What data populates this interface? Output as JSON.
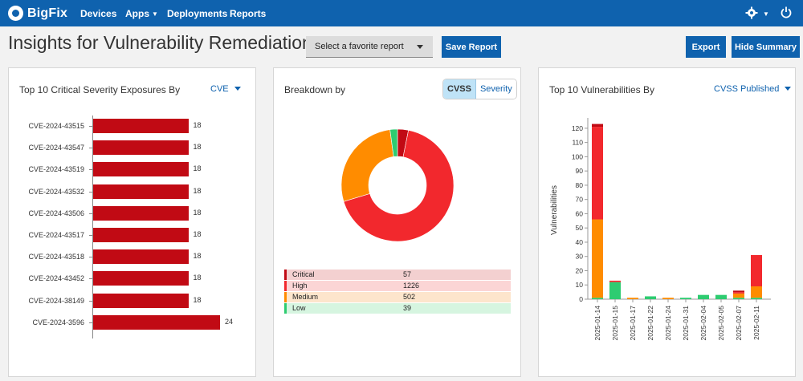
{
  "nav": {
    "brand": "BigFix",
    "items": [
      {
        "label": "Devices",
        "caret": false
      },
      {
        "label": "Apps",
        "caret": true
      },
      {
        "label": "Deployments",
        "caret": false
      },
      {
        "label": "Reports",
        "caret": false
      }
    ],
    "icons": [
      "gear-icon",
      "power-icon"
    ]
  },
  "header": {
    "title": "Insights for Vulnerability Remediation",
    "favorite_placeholder": "Select a favorite report",
    "save_label": "Save Report",
    "export_label": "Export",
    "hide_summary_label": "Hide Summary"
  },
  "colors": {
    "brand": "#0f62ae",
    "critical": "#c10a14",
    "high": "#f2282d",
    "medium": "#ff8c00",
    "low": "#2ecc71"
  },
  "exposures": {
    "title": "Top 10 Critical Severity Exposures By",
    "dropdown": "CVE",
    "chart_data": {
      "type": "bar",
      "orientation": "horizontal",
      "categories": [
        "CVE-2024-43515",
        "CVE-2024-43547",
        "CVE-2024-43519",
        "CVE-2024-43532",
        "CVE-2024-43506",
        "CVE-2024-43517",
        "CVE-2024-43518",
        "CVE-2024-43452",
        "CVE-2024-38149",
        "CVE-2024-3596"
      ],
      "values": [
        18,
        18,
        18,
        18,
        18,
        18,
        18,
        18,
        18,
        24
      ],
      "xlim": [
        0,
        24
      ]
    }
  },
  "breakdown": {
    "title": "Breakdown by",
    "toggle": [
      "CVSS",
      "Severity"
    ],
    "chart_data": {
      "type": "pie",
      "variant": "donut",
      "labels": [
        "Critical",
        "High",
        "Medium",
        "Low"
      ],
      "values": [
        57,
        1226,
        502,
        39
      ],
      "colors": [
        "#c10a14",
        "#f2282d",
        "#ff8c00",
        "#2ecc71"
      ]
    },
    "legend": [
      {
        "name": "Critical",
        "value": "57",
        "bg": "#f3d0d0",
        "edge": "#c10a14"
      },
      {
        "name": "High",
        "value": "1226",
        "bg": "#fbd5d5",
        "edge": "#f2282d"
      },
      {
        "name": "Medium",
        "value": "502",
        "bg": "#fde5cc",
        "edge": "#ff8c00"
      },
      {
        "name": "Low",
        "value": "39",
        "bg": "#d6f5e0",
        "edge": "#2ecc71"
      }
    ]
  },
  "vulns": {
    "title": "Top 10 Vulnerabilities By",
    "dropdown": "CVSS Published",
    "chart_data": {
      "type": "bar",
      "stacked": true,
      "ylabel": "Vulnerabilities",
      "ylim": [
        0,
        125
      ],
      "yticks": [
        0,
        10,
        20,
        30,
        40,
        50,
        60,
        70,
        80,
        90,
        100,
        110,
        120
      ],
      "categories": [
        "2025-01-14",
        "2025-01-15",
        "2025-01-17",
        "2025-01-22",
        "2025-01-24",
        "2025-01-31",
        "2025-02-04",
        "2025-02-05",
        "2025-02-07",
        "2025-02-11"
      ],
      "series": [
        {
          "name": "Low",
          "color": "#2ecc71",
          "values": [
            1,
            12,
            0,
            2,
            0,
            1,
            3,
            3,
            1,
            1
          ]
        },
        {
          "name": "Medium",
          "color": "#ff8c00",
          "values": [
            55,
            0,
            1,
            0,
            1,
            0,
            0,
            0,
            3,
            8
          ]
        },
        {
          "name": "High",
          "color": "#f2282d",
          "values": [
            65,
            1,
            0,
            0,
            0,
            0,
            0,
            0,
            1,
            22
          ]
        },
        {
          "name": "Critical",
          "color": "#c10a14",
          "values": [
            2,
            0,
            0,
            0,
            0,
            0,
            0,
            0,
            1,
            0
          ]
        }
      ]
    }
  }
}
